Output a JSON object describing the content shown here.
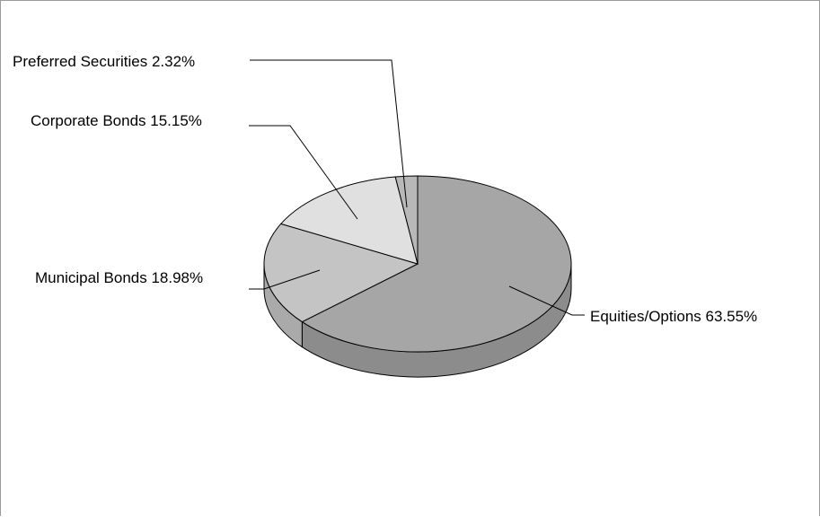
{
  "chart_data": {
    "type": "pie",
    "style": "3d",
    "title": "",
    "legend": "none",
    "slices": [
      {
        "label": "Equities/Options 63.55%",
        "category": "Equities/Options",
        "value": 63.55,
        "color": "#a6a6a6",
        "side_color": "#8c8c8c"
      },
      {
        "label": "Municipal Bonds 18.98%",
        "category": "Municipal Bonds",
        "value": 18.98,
        "color": "#c4c4c4",
        "side_color": "#aaaaaa"
      },
      {
        "label": "Corporate Bonds 15.15%",
        "category": "Corporate Bonds",
        "value": 15.15,
        "color": "#e0e0e0",
        "side_color": "#c8c8c8"
      },
      {
        "label": "Preferred Securities 2.32%",
        "category": "Preferred Securities",
        "value": 2.32,
        "color": "#b8b8b8",
        "side_color": "#9e9e9e"
      }
    ]
  }
}
